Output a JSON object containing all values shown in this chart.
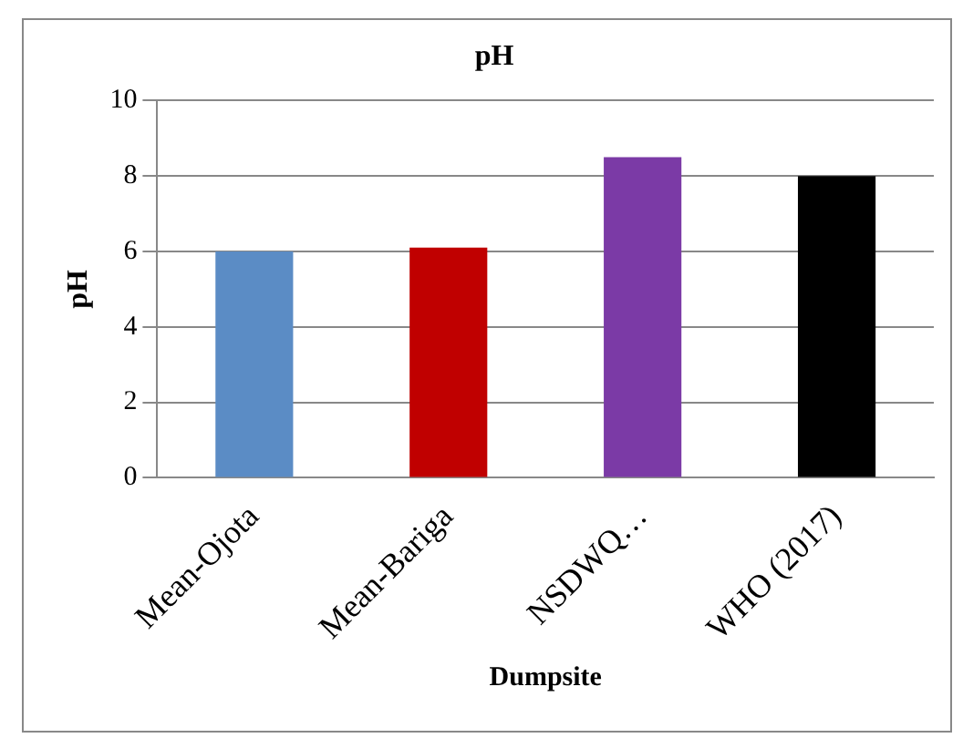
{
  "chart_data": {
    "type": "bar",
    "title": "pH",
    "xlabel": "Dumpsite",
    "ylabel": "pH",
    "categories": [
      "Mean-Ojota",
      "Mean-Bariga",
      "NSDWQ…",
      "WHO (2017)"
    ],
    "values": [
      6.0,
      6.1,
      8.5,
      8.0
    ],
    "colors": [
      "#5b8cc5",
      "#c00000",
      "#7b3aa6",
      "#000000"
    ],
    "ylim": [
      0,
      10
    ],
    "yticks": [
      0,
      2,
      4,
      6,
      8,
      10
    ],
    "grid": "y",
    "legend": false
  }
}
